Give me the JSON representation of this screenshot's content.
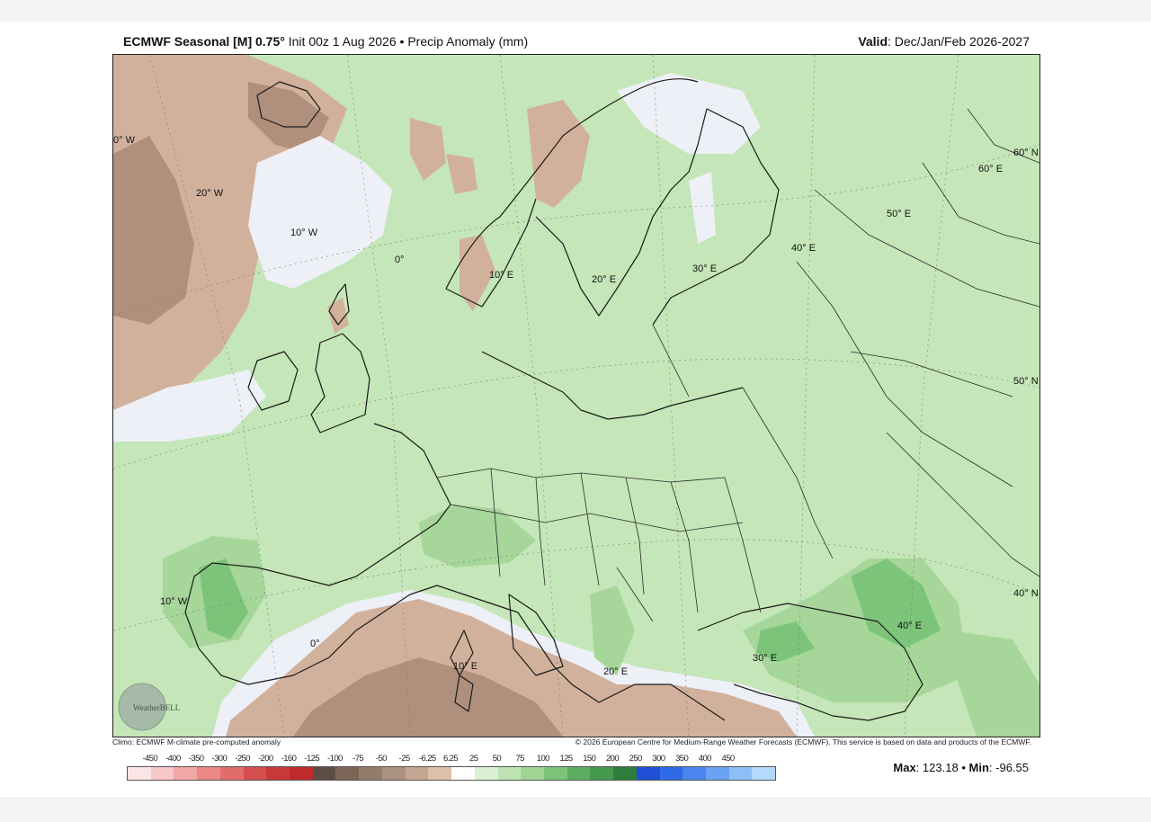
{
  "header": {
    "model": "ECMWF Seasonal [M] 0.75°",
    "init": "Init 00z 1 Aug 2026",
    "separator": "•",
    "product": "Precip Anomaly (mm)",
    "valid_label": "Valid",
    "valid_value": ": Dec/Jan/Feb 2026-2027"
  },
  "map": {
    "lon_labels": [
      "0° W",
      "20° W",
      "10° W",
      "0°",
      "10° E",
      "20° E",
      "30° E",
      "40° E",
      "50° E",
      "60° E",
      "10° W",
      "0°",
      "10° E",
      "20° E",
      "30° E",
      "40° E"
    ],
    "lat_labels": [
      "60° N",
      "50° N",
      "40° N"
    ],
    "logo_text": "WeatherBELL",
    "colors": {
      "dry_strong": "#b08f7d",
      "dry_light": "#d2b19c",
      "near_zero": "#eef0f8",
      "wet_light": "#c4e6b8",
      "wet_mid": "#a6d69a",
      "wet_strong": "#7cc47a"
    }
  },
  "footer": {
    "climo": "Climo: ECMWF M-climate pre-computed anomaly",
    "copyright": "© 2026 European Centre for Medium-Range Weather Forecasts (ECMWF). This service is based on data and products of the ECMWF.",
    "scale_ticks": [
      "-450",
      "-400",
      "-350",
      "-300",
      "-250",
      "-200",
      "-160",
      "-125",
      "-100",
      "-75",
      "-50",
      "-25",
      "-6.25",
      "6.25",
      "25",
      "50",
      "75",
      "100",
      "125",
      "150",
      "200",
      "250",
      "300",
      "350",
      "400",
      "450"
    ],
    "scale_colors": [
      "#fbe6e6",
      "#f7c6c6",
      "#f2a6a6",
      "#ec8888",
      "#e26b6b",
      "#d54f4f",
      "#c83838",
      "#c02a2a",
      "#5e4d42",
      "#7b6557",
      "#947c6b",
      "#ab9180",
      "#c3a792",
      "#dcc0aa",
      "#ffffff",
      "#d9f0d2",
      "#bfe4b4",
      "#9fd495",
      "#7ec27a",
      "#5eae62",
      "#45994e",
      "#2f7d3d",
      "#1f4fd6",
      "#2f6be6",
      "#4a85ee",
      "#6aa3f3",
      "#8dbff7",
      "#b3d9fb"
    ],
    "max_label": "Max",
    "max_value": ": 123.18",
    "sep": "•",
    "min_label": "Min",
    "min_value": ": -96.55"
  }
}
